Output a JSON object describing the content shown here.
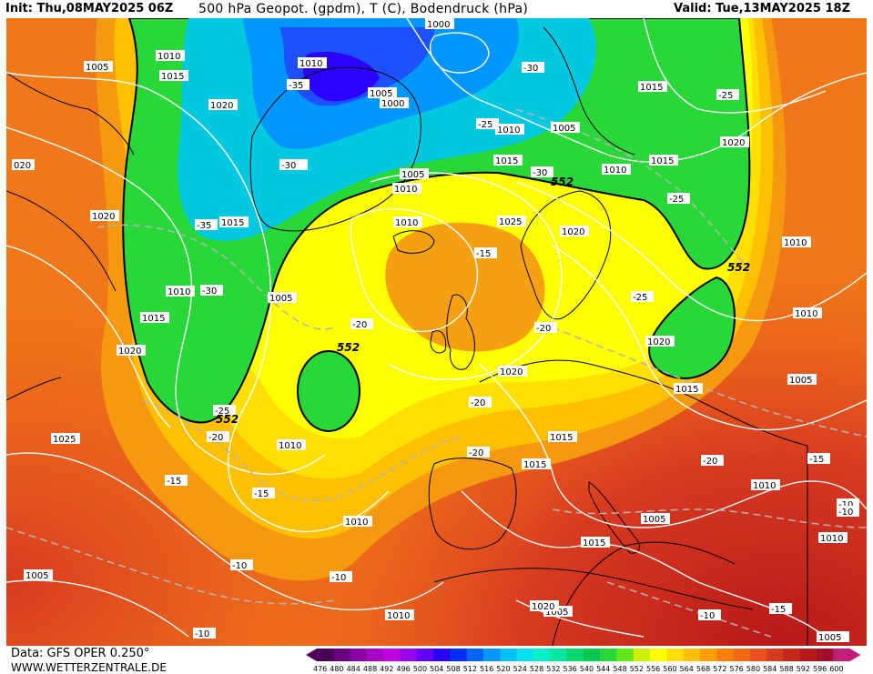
{
  "header": {
    "init_label": "Init: Thu,08MAY2025 06Z",
    "title": "500 hPa Geopot. (gpdm), T (C), Bodendruck (hPa)",
    "valid_label": "Valid: Tue,13MAY2025 18Z"
  },
  "footer": {
    "data_source": "Data: GFS OPER 0.250°",
    "website": "WWW.WETTERZENTRALE.DE"
  },
  "color_scale": {
    "values": [
      "476",
      "480",
      "484",
      "488",
      "492",
      "496",
      "500",
      "504",
      "508",
      "512",
      "516",
      "520",
      "524",
      "528",
      "532",
      "536",
      "540",
      "544",
      "548",
      "552",
      "556",
      "560",
      "564",
      "568",
      "572",
      "576",
      "580",
      "584",
      "588",
      "592",
      "596",
      "600"
    ],
    "colors": [
      "#4b0057",
      "#6a007d",
      "#8b00a3",
      "#a800c4",
      "#c000e0",
      "#9a00f0",
      "#6400ff",
      "#2c00ff",
      "#0030ff",
      "#0064ff",
      "#0096ff",
      "#00c0ff",
      "#00e0f0",
      "#00f0c8",
      "#00e8a0",
      "#00d870",
      "#00c850",
      "#28d838",
      "#60e818",
      "#c8f000",
      "#ffff00",
      "#ffe000",
      "#ffc000",
      "#ffa000",
      "#ff8000",
      "#f56a10",
      "#e85020",
      "#d83a20",
      "#c82818",
      "#b81818",
      "#a01028",
      "#c0207a"
    ]
  },
  "contour_labels": {
    "pressure": [
      "1005",
      "1010",
      "1015",
      "1020",
      "1025",
      "1000"
    ],
    "temperature": [
      "-35",
      "-30",
      "-25",
      "-20",
      "-15",
      "-10"
    ],
    "geopotential": [
      "552"
    ]
  },
  "labels": [
    {
      "text": "1005",
      "kind": "pressure"
    },
    {
      "text": "1010",
      "kind": "pressure"
    },
    {
      "text": "1015",
      "kind": "pressure"
    },
    {
      "text": "1010",
      "kind": "pressure"
    },
    {
      "text": "1020",
      "kind": "pressure"
    },
    {
      "text": "-35",
      "kind": "temperature"
    },
    {
      "text": "1005",
      "kind": "pressure"
    },
    {
      "text": "1000",
      "kind": "pressure"
    },
    {
      "text": "1000",
      "kind": "pressure"
    },
    {
      "text": "-30",
      "kind": "temperature"
    },
    {
      "text": "-30",
      "kind": "temperature"
    },
    {
      "text": "1015",
      "kind": "pressure"
    },
    {
      "text": "-25",
      "kind": "temperature"
    },
    {
      "text": "1010",
      "kind": "pressure"
    },
    {
      "text": "-30",
      "kind": "temperature"
    },
    {
      "text": "-25",
      "kind": "temperature"
    },
    {
      "text": "1005",
      "kind": "pressure"
    },
    {
      "text": "020",
      "kind": "pressure"
    },
    {
      "text": "-30",
      "kind": "temperature"
    },
    {
      "text": "1010",
      "kind": "pressure"
    },
    {
      "text": "1015",
      "kind": "pressure"
    },
    {
      "text": "1005",
      "kind": "pressure"
    },
    {
      "text": "1010",
      "kind": "pressure"
    },
    {
      "text": "1015",
      "kind": "pressure"
    },
    {
      "text": "552",
      "kind": "geopotential"
    },
    {
      "text": "-25",
      "kind": "temperature"
    },
    {
      "text": "1020",
      "kind": "pressure"
    },
    {
      "text": "-35",
      "kind": "temperature"
    },
    {
      "text": "1015",
      "kind": "pressure"
    },
    {
      "text": "1020",
      "kind": "pressure"
    },
    {
      "text": "1025",
      "kind": "pressure"
    },
    {
      "text": "1020",
      "kind": "pressure"
    },
    {
      "text": "1010",
      "kind": "pressure"
    },
    {
      "text": "-15",
      "kind": "temperature"
    },
    {
      "text": "1010",
      "kind": "pressure"
    },
    {
      "text": "-30",
      "kind": "temperature"
    },
    {
      "text": "1010",
      "kind": "pressure"
    },
    {
      "text": "1005",
      "kind": "pressure"
    },
    {
      "text": "-25",
      "kind": "temperature"
    },
    {
      "text": "552",
      "kind": "geopotential"
    },
    {
      "text": "1015",
      "kind": "pressure"
    },
    {
      "text": "-20",
      "kind": "temperature"
    },
    {
      "text": "1010",
      "kind": "pressure"
    },
    {
      "text": "1020",
      "kind": "pressure"
    },
    {
      "text": "552",
      "kind": "geopotential"
    },
    {
      "text": "1020",
      "kind": "pressure"
    },
    {
      "text": "-20",
      "kind": "temperature"
    },
    {
      "text": "1020",
      "kind": "pressure"
    },
    {
      "text": "1015",
      "kind": "pressure"
    },
    {
      "text": "-25",
      "kind": "temperature"
    },
    {
      "text": "552",
      "kind": "geopotential"
    },
    {
      "text": "-20",
      "kind": "temperature"
    },
    {
      "text": "1005",
      "kind": "pressure"
    },
    {
      "text": "1025",
      "kind": "pressure"
    },
    {
      "text": "-20",
      "kind": "temperature"
    },
    {
      "text": "1010",
      "kind": "pressure"
    },
    {
      "text": "-20",
      "kind": "temperature"
    },
    {
      "text": "1015",
      "kind": "pressure"
    },
    {
      "text": "1015",
      "kind": "pressure"
    },
    {
      "text": "-20",
      "kind": "temperature"
    },
    {
      "text": "-15",
      "kind": "temperature"
    },
    {
      "text": "-15",
      "kind": "temperature"
    },
    {
      "text": "1010",
      "kind": "pressure"
    },
    {
      "text": "-15",
      "kind": "temperature"
    },
    {
      "text": "1010",
      "kind": "pressure"
    },
    {
      "text": "-10",
      "kind": "temperature"
    },
    {
      "text": "1005",
      "kind": "pressure"
    },
    {
      "text": "-10",
      "kind": "temperature"
    },
    {
      "text": "1015",
      "kind": "pressure"
    },
    {
      "text": "1010",
      "kind": "pressure"
    },
    {
      "text": "-10",
      "kind": "temperature"
    },
    {
      "text": "-10",
      "kind": "temperature"
    },
    {
      "text": "-15",
      "kind": "temperature"
    },
    {
      "text": "1005",
      "kind": "pressure"
    },
    {
      "text": "-10",
      "kind": "temperature"
    },
    {
      "text": "1010",
      "kind": "pressure"
    },
    {
      "text": "1005",
      "kind": "pressure"
    },
    {
      "text": "1020",
      "kind": "pressure"
    },
    {
      "text": "-10",
      "kind": "temperature"
    },
    {
      "text": "1010",
      "kind": "pressure"
    },
    {
      "text": "1005",
      "kind": "pressure"
    }
  ]
}
